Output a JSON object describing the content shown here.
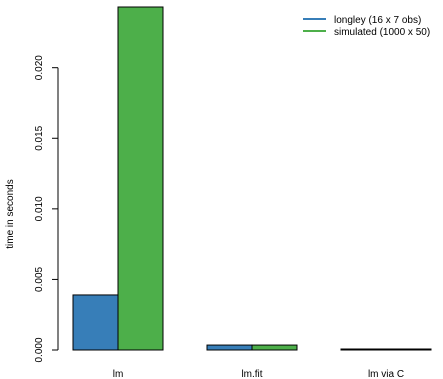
{
  "chart_data": {
    "type": "bar",
    "title": "",
    "xlabel": "",
    "ylabel": "time in seconds",
    "categories": [
      "lm",
      "lm.fit",
      "lm via C"
    ],
    "series": [
      {
        "name": "longley (16 x 7 obs)",
        "color": "#377eb8",
        "values": [
          0.0039,
          0.00035,
          4e-05
        ]
      },
      {
        "name": "simulated (1000 x 50)",
        "color": "#4daf4a",
        "values": [
          0.0243,
          0.00035,
          2e-05
        ]
      }
    ],
    "ylim": [
      0,
      0.0243
    ],
    "yticks": [
      0.0,
      0.005,
      0.01,
      0.015,
      0.02
    ],
    "ytick_labels": [
      "0.000",
      "0.005",
      "0.010",
      "0.015",
      "0.020"
    ],
    "grid": false,
    "legend_position": "top-right"
  }
}
